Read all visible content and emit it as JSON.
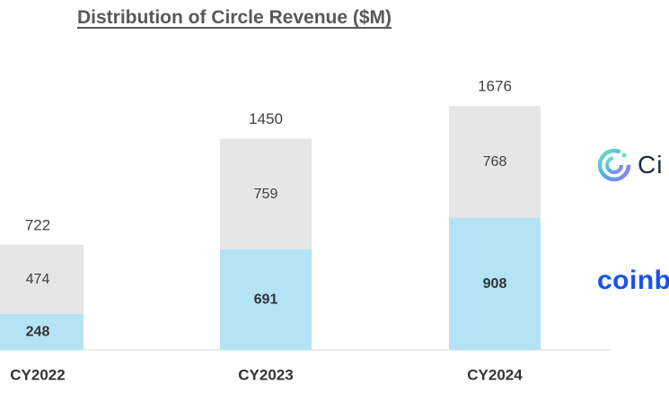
{
  "title": "Distribution of Circle Revenue ($M)",
  "chart_data": {
    "type": "bar",
    "stacked": true,
    "title": "Distribution of Circle Revenue ($M)",
    "categories": [
      "CY2022",
      "CY2023",
      "CY2024"
    ],
    "series": [
      {
        "name": "Coinbase",
        "values": [
          248,
          691,
          908
        ],
        "color": "#b3e3f5"
      },
      {
        "name": "Circle",
        "values": [
          474,
          759,
          768
        ],
        "color": "#e6e6e6"
      }
    ],
    "totals": [
      722,
      1450,
      1676
    ],
    "xlabel": "",
    "ylabel": "",
    "ylim": [
      0,
      1900
    ],
    "grid": false,
    "legend": "right"
  },
  "legend": {
    "circle_text": "Ci",
    "coinbase_text": "coinb",
    "circle_color": "#1f2a44",
    "coinbase_color": "#1652f0"
  },
  "colors": {
    "title": "#595959",
    "labels": "#404040",
    "axis": "#d9d9d9"
  }
}
